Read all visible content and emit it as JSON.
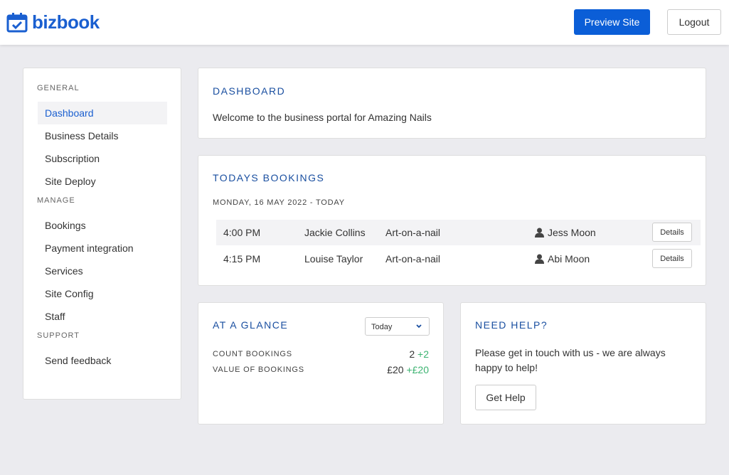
{
  "header": {
    "logo": "bizbook",
    "preview": "Preview Site",
    "logout": "Logout"
  },
  "sidebar": {
    "sections": [
      {
        "title": "GENERAL",
        "items": [
          "Dashboard",
          "Business Details",
          "Subscription",
          "Site Deploy"
        ]
      },
      {
        "title": "MANAGE",
        "items": [
          "Bookings",
          "Payment integration",
          "Services",
          "Site Config",
          "Staff"
        ]
      },
      {
        "title": "SUPPORT",
        "items": [
          "Send feedback"
        ]
      }
    ]
  },
  "dashboard": {
    "title": "DASHBOARD",
    "text": "Welcome to the business portal for Amazing Nails"
  },
  "bookings": {
    "title": "TODAYS BOOKINGS",
    "date": "MONDAY, 16 MAY 2022 - TODAY",
    "rows": [
      [
        "4:00 PM",
        "Jackie Collins",
        "Art-on-a-nail",
        "Jess Moon",
        "Details"
      ],
      [
        "4:15 PM",
        "Louise Taylor",
        "Art-on-a-nail",
        "Abi Moon",
        "Details"
      ]
    ]
  },
  "glance": {
    "title": "AT A GLANCE",
    "select": "Today",
    "rows": [
      {
        "label": "COUNT BOOKINGS",
        "value": "2",
        "change": "+2"
      },
      {
        "label": "VALUE OF BOOKINGS",
        "value": "£20",
        "change": "+£20"
      }
    ]
  },
  "help": {
    "title": "NEED HELP?",
    "text": "Please get in touch with us - we are always happy to help!",
    "button": "Get Help"
  }
}
